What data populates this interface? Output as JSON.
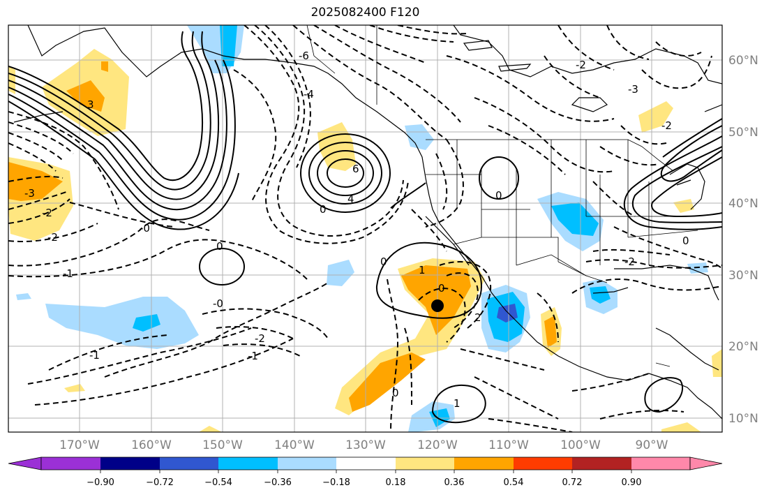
{
  "title": "2025082400 F120",
  "map": {
    "lon_labels": [
      "170°W",
      "160°W",
      "150°W",
      "140°W",
      "130°W",
      "120°W",
      "110°W",
      "100°W",
      "90°W"
    ],
    "lat_labels": [
      "60°N",
      "50°N",
      "40°N",
      "30°N",
      "20°N",
      "10°N"
    ],
    "contour_labels": [
      "-3",
      "-2",
      "-2",
      "-1",
      "-1",
      "-0",
      "-0",
      "0",
      "0",
      "0",
      "0",
      "0",
      "0",
      "1",
      "1",
      "-1",
      "-2",
      "2",
      "-2",
      "4",
      "-4",
      "6",
      "-6",
      "-3",
      "-2",
      "3",
      "-2",
      "0"
    ],
    "marker": {
      "lon": -119.2,
      "lat": 25.7,
      "label": ""
    }
  },
  "colorbar": {
    "ticks": [
      "−0.90",
      "−0.72",
      "−0.54",
      "−0.36",
      "−0.18",
      "0.18",
      "0.36",
      "0.54",
      "0.72",
      "0.90"
    ],
    "colors": [
      "#9b30d6",
      "#000088",
      "#3057d0",
      "#00bfff",
      "#aadcff",
      "#ffffff",
      "#ffe680",
      "#ffa500",
      "#ff3c00",
      "#b22222",
      "#ff88aa"
    ]
  },
  "colors": {
    "grid": "#b0b0b0",
    "coast": "#000000",
    "contour": "#000000"
  }
}
